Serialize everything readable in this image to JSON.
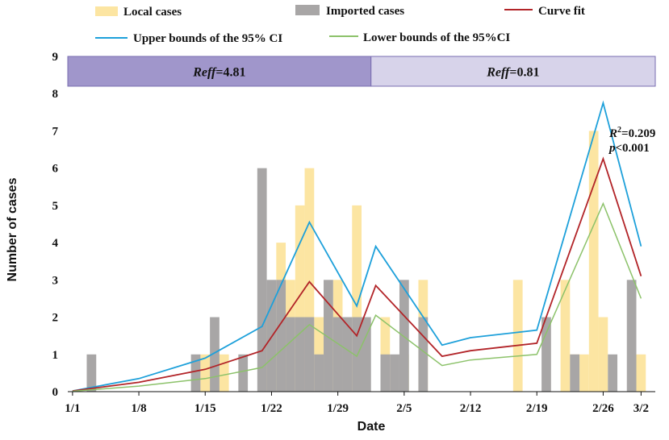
{
  "chart_data": {
    "type": "bar",
    "title": "",
    "xlabel": "Date",
    "ylabel": "Number of cases",
    "ylim": [
      0,
      9
    ],
    "y_ticks": [
      0,
      1,
      2,
      3,
      4,
      5,
      6,
      7,
      8,
      9
    ],
    "x_tick_labels": [
      "1/1",
      "1/8",
      "1/15",
      "1/22",
      "1/29",
      "2/5",
      "2/12",
      "2/19",
      "2/26",
      "3/2"
    ],
    "x_tick_days": [
      1,
      8,
      15,
      22,
      29,
      36,
      43,
      50,
      57,
      61
    ],
    "legend": {
      "local": "Local cases",
      "imported": "Imported cases",
      "fit": "Curve fit",
      "upper": "Upper bounds of the 95% CI",
      "lower": "Lower bounds of the 95%CI"
    },
    "colors": {
      "local": "#FCE5A2",
      "imported": "#A8A6A6",
      "fit": "#B22428",
      "upper": "#1DA0DA",
      "lower": "#8CC26A",
      "band1": "#A096CB",
      "band2": "#D7D3EA",
      "band_border": "#7A6EB0"
    },
    "reff_bands": [
      {
        "label_prefix": "Reff",
        "label_value": "=4.81",
        "day_start": 0.5,
        "day_end": 32.5
      },
      {
        "label_prefix": "Reff",
        "label_value": "=0.81",
        "day_start": 32.5,
        "day_end": 62.5
      }
    ],
    "local_cases": [
      {
        "day": 15,
        "value": 1
      },
      {
        "day": 16,
        "value": 1
      },
      {
        "day": 17,
        "value": 1
      },
      {
        "day": 22,
        "value": 2
      },
      {
        "day": 23,
        "value": 4
      },
      {
        "day": 24,
        "value": 3
      },
      {
        "day": 25,
        "value": 5
      },
      {
        "day": 26,
        "value": 6
      },
      {
        "day": 27,
        "value": 2
      },
      {
        "day": 28,
        "value": 2
      },
      {
        "day": 29,
        "value": 3
      },
      {
        "day": 30,
        "value": 1
      },
      {
        "day": 31,
        "value": 5
      },
      {
        "day": 34,
        "value": 2
      },
      {
        "day": 36,
        "value": 1
      },
      {
        "day": 38,
        "value": 3
      },
      {
        "day": 48,
        "value": 3
      },
      {
        "day": 53,
        "value": 3
      },
      {
        "day": 54,
        "value": 1
      },
      {
        "day": 55,
        "value": 1
      },
      {
        "day": 56,
        "value": 7
      },
      {
        "day": 57,
        "value": 2
      },
      {
        "day": 61,
        "value": 1
      }
    ],
    "imported_cases": [
      {
        "day": 3,
        "value": 1
      },
      {
        "day": 14,
        "value": 1
      },
      {
        "day": 16,
        "value": 2
      },
      {
        "day": 19,
        "value": 1
      },
      {
        "day": 21,
        "value": 6
      },
      {
        "day": 22,
        "value": 3
      },
      {
        "day": 23,
        "value": 3
      },
      {
        "day": 24,
        "value": 2
      },
      {
        "day": 25,
        "value": 2
      },
      {
        "day": 26,
        "value": 2
      },
      {
        "day": 27,
        "value": 1
      },
      {
        "day": 28,
        "value": 3
      },
      {
        "day": 29,
        "value": 2
      },
      {
        "day": 30,
        "value": 2
      },
      {
        "day": 31,
        "value": 2
      },
      {
        "day": 32,
        "value": 2
      },
      {
        "day": 34,
        "value": 1
      },
      {
        "day": 35,
        "value": 1
      },
      {
        "day": 36,
        "value": 3
      },
      {
        "day": 38,
        "value": 2
      },
      {
        "day": 51,
        "value": 2
      },
      {
        "day": 54,
        "value": 1
      },
      {
        "day": 58,
        "value": 1
      },
      {
        "day": 60,
        "value": 3
      }
    ],
    "curve_fit": [
      [
        1,
        0.02
      ],
      [
        8,
        0.25
      ],
      [
        15,
        0.6
      ],
      [
        21,
        1.1
      ],
      [
        26,
        2.95
      ],
      [
        31,
        1.5
      ],
      [
        33,
        2.85
      ],
      [
        40,
        0.95
      ],
      [
        43,
        1.1
      ],
      [
        50,
        1.3
      ],
      [
        57,
        6.25
      ],
      [
        61,
        3.1
      ]
    ],
    "upper_ci": [
      [
        1,
        0.02
      ],
      [
        8,
        0.35
      ],
      [
        15,
        0.9
      ],
      [
        21,
        1.75
      ],
      [
        26,
        4.55
      ],
      [
        31,
        2.3
      ],
      [
        33,
        3.9
      ],
      [
        40,
        1.25
      ],
      [
        43,
        1.45
      ],
      [
        50,
        1.65
      ],
      [
        57,
        7.75
      ],
      [
        61,
        3.9
      ]
    ],
    "lower_ci": [
      [
        1,
        0.01
      ],
      [
        8,
        0.15
      ],
      [
        15,
        0.35
      ],
      [
        21,
        0.65
      ],
      [
        26,
        1.8
      ],
      [
        31,
        0.95
      ],
      [
        33,
        2.05
      ],
      [
        40,
        0.7
      ],
      [
        43,
        0.85
      ],
      [
        50,
        1.0
      ],
      [
        57,
        5.05
      ],
      [
        61,
        2.5
      ]
    ],
    "annotations": {
      "r2_label": "R",
      "r2_super": "2",
      "r2_value": "=0.209",
      "p_label": "p",
      "p_value": "<0.001"
    }
  }
}
